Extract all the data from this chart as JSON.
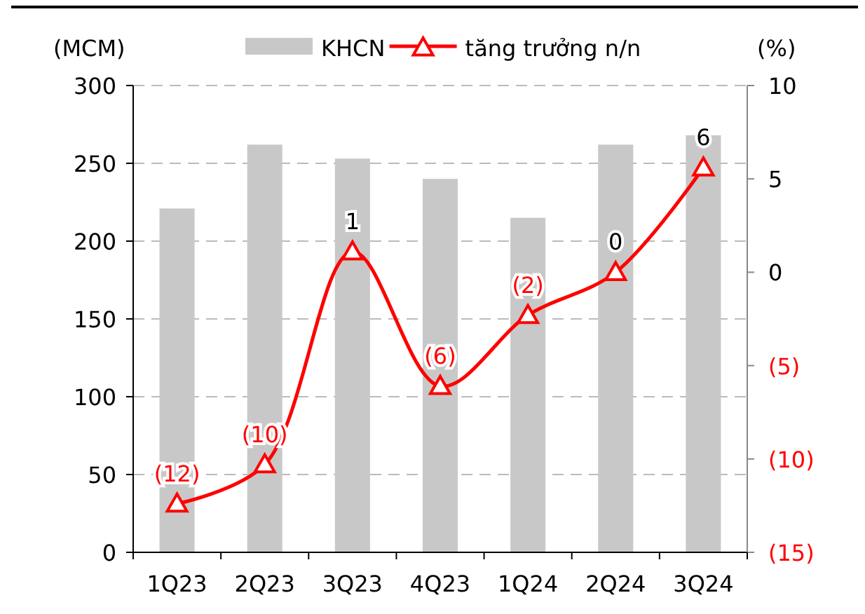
{
  "chart_data": {
    "type": "bar",
    "ylabel": "(MCM)",
    "y2label": "(%)",
    "categories": [
      "1Q23",
      "2Q23",
      "3Q23",
      "4Q23",
      "1Q24",
      "2Q24",
      "3Q24"
    ],
    "series": [
      {
        "name": "KHCN",
        "color": "#c8c8c8",
        "values": [
          221,
          262,
          253,
          240,
          215,
          262,
          268
        ]
      },
      {
        "name": "tăng trưởng n/n",
        "type": "line",
        "axis": "y2",
        "color": "#ff0000",
        "marker": "triangle",
        "values": [
          -12.4,
          -10.3,
          1.1,
          -6.1,
          -2.3,
          0,
          5.6
        ],
        "value_labels": [
          "(12)",
          "(10)",
          "1",
          "(6)",
          "(2)",
          "0",
          "6"
        ]
      }
    ],
    "ylim": [
      0,
      300
    ],
    "yticks": [
      0,
      50,
      100,
      150,
      200,
      250,
      300
    ],
    "y2lim": [
      -15,
      10
    ],
    "y2ticks": [
      {
        "value": -15,
        "label": "(15)"
      },
      {
        "value": -10,
        "label": "(10)"
      },
      {
        "value": -5,
        "label": "(5)"
      },
      0,
      5,
      10
    ],
    "grid": "y",
    "legend": "top"
  }
}
